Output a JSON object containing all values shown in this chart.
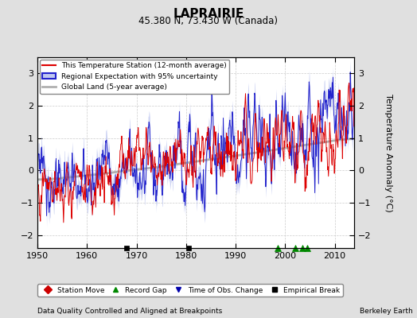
{
  "title": "LAPRAIRIE",
  "subtitle": "45.380 N, 73.430 W (Canada)",
  "xlabel_bottom": "Data Quality Controlled and Aligned at Breakpoints",
  "xlabel_right": "Berkeley Earth",
  "ylabel": "Temperature Anomaly (°C)",
  "xmin": 1950,
  "xmax": 2014,
  "ymin": -2.4,
  "ymax": 3.5,
  "yticks": [
    -2,
    -1,
    0,
    1,
    2,
    3
  ],
  "bg_color": "#e0e0e0",
  "plot_bg_color": "#ffffff",
  "station_color": "#dd0000",
  "regional_color": "#2222cc",
  "regional_fill_color": "#c0c8f0",
  "global_color": "#b0b0b0",
  "legend_labels": [
    "This Temperature Station (12-month average)",
    "Regional Expectation with 95% uncertainty",
    "Global Land (5-year average)"
  ],
  "marker_legend": [
    {
      "label": "Station Move",
      "color": "#cc0000",
      "marker": "D"
    },
    {
      "label": "Record Gap",
      "color": "#008800",
      "marker": "^"
    },
    {
      "label": "Time of Obs. Change",
      "color": "#0000aa",
      "marker": "v"
    },
    {
      "label": "Empirical Break",
      "color": "#000000",
      "marker": "s"
    }
  ],
  "station_moves": [],
  "record_gaps": [
    1998.5,
    2002.0,
    2003.5,
    2004.5
  ],
  "obs_changes": [],
  "empirical_breaks": [
    1968.0,
    1980.5
  ]
}
